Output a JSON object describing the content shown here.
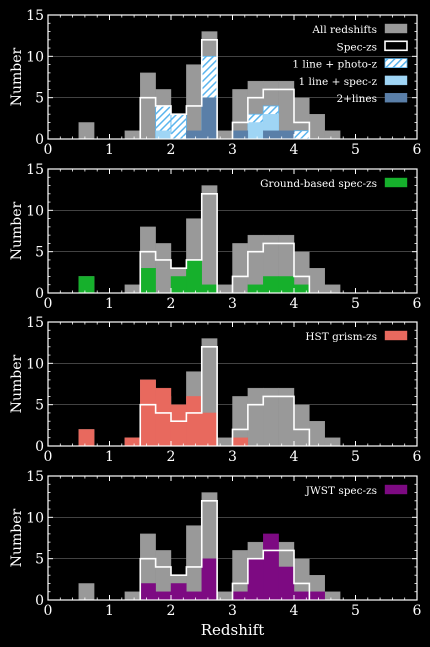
{
  "chart_data": [
    {
      "type": "histogram",
      "ylabel": "Number",
      "xlabel": "",
      "xlim": [
        0,
        6
      ],
      "ylim": [
        0,
        15
      ],
      "xticks": [
        "0",
        "1",
        "2",
        "3",
        "4",
        "5",
        "6"
      ],
      "yticks": [
        "0",
        "5",
        "10",
        "15"
      ],
      "bin_width": 0.25,
      "legend": {
        "position": "top-right",
        "entries": [
          {
            "label": "All redshifts",
            "style": "fill",
            "color": "#999999"
          },
          {
            "label": "Spec-zs",
            "style": "outline",
            "color": "#ffffff"
          },
          {
            "label": "1 line + photo-z",
            "style": "hatch",
            "color": "#5bb5ee"
          },
          {
            "label": "1 line + spec-z",
            "style": "fill",
            "color": "#9fd5f5"
          },
          {
            "label": "2+lines",
            "style": "fill",
            "color": "#5a7fa8"
          }
        ]
      },
      "series": [
        {
          "name": "All redshifts",
          "style": "fill",
          "color": "#999999",
          "bins": [
            [
              0.5,
              2
            ],
            [
              1.25,
              1
            ],
            [
              1.5,
              8
            ],
            [
              1.75,
              6
            ],
            [
              2.0,
              3
            ],
            [
              2.25,
              9
            ],
            [
              2.5,
              13
            ],
            [
              2.75,
              1
            ],
            [
              3.0,
              6
            ],
            [
              3.25,
              7
            ],
            [
              3.5,
              7
            ],
            [
              3.75,
              7
            ],
            [
              4.0,
              5
            ],
            [
              4.25,
              3
            ],
            [
              4.5,
              1
            ]
          ]
        },
        {
          "name": "1 line + photo-z",
          "style": "hatch",
          "color": "#5bb5ee",
          "bins": [
            [
              1.75,
              4
            ],
            [
              2.0,
              3
            ],
            [
              2.5,
              10
            ],
            [
              3.25,
              3
            ],
            [
              3.5,
              4
            ],
            [
              4.0,
              1
            ]
          ]
        },
        {
          "name": "1 line + spec-z",
          "style": "fill",
          "color": "#9fd5f5",
          "bins": [
            [
              1.75,
              1
            ],
            [
              2.5,
              5
            ],
            [
              3.25,
              2
            ],
            [
              3.5,
              3
            ]
          ]
        },
        {
          "name": "2+lines",
          "style": "fill",
          "color": "#5a7fa8",
          "bins": [
            [
              2.25,
              1
            ],
            [
              2.5,
              5
            ],
            [
              3.0,
              1
            ],
            [
              3.5,
              1
            ],
            [
              3.75,
              1
            ]
          ]
        },
        {
          "name": "Spec-zs",
          "style": "outline",
          "color": "#ffffff",
          "bins": [
            [
              1.5,
              5
            ],
            [
              1.75,
              4
            ],
            [
              2.0,
              3
            ],
            [
              2.25,
              4
            ],
            [
              2.5,
              12
            ],
            [
              3.0,
              2
            ],
            [
              3.25,
              5
            ],
            [
              3.5,
              6
            ],
            [
              3.75,
              6
            ],
            [
              4.0,
              2
            ]
          ]
        }
      ]
    },
    {
      "type": "histogram",
      "ylabel": "Number",
      "xlabel": "",
      "xlim": [
        0,
        6
      ],
      "ylim": [
        0,
        15
      ],
      "xticks": [
        "0",
        "1",
        "2",
        "3",
        "4",
        "5",
        "6"
      ],
      "yticks": [
        "0",
        "5",
        "10",
        "15"
      ],
      "bin_width": 0.25,
      "legend": {
        "position": "top-right",
        "entries": [
          {
            "label": "Ground-based spec-zs",
            "style": "fill",
            "color": "#16b02c"
          }
        ]
      },
      "series": [
        {
          "name": "All redshifts",
          "style": "fill",
          "color": "#999999",
          "bins": [
            [
              0.5,
              2
            ],
            [
              1.25,
              1
            ],
            [
              1.5,
              8
            ],
            [
              1.75,
              6
            ],
            [
              2.0,
              3
            ],
            [
              2.25,
              9
            ],
            [
              2.5,
              13
            ],
            [
              2.75,
              1
            ],
            [
              3.0,
              6
            ],
            [
              3.25,
              7
            ],
            [
              3.5,
              7
            ],
            [
              3.75,
              7
            ],
            [
              4.0,
              5
            ],
            [
              4.25,
              3
            ],
            [
              4.5,
              1
            ]
          ]
        },
        {
          "name": "Ground-based spec-zs",
          "style": "fill",
          "color": "#16b02c",
          "bins": [
            [
              0.5,
              2
            ],
            [
              1.5,
              3
            ],
            [
              2.0,
              2
            ],
            [
              2.25,
              4
            ],
            [
              2.5,
              1
            ],
            [
              3.25,
              1
            ],
            [
              3.5,
              2
            ],
            [
              3.75,
              2
            ],
            [
              4.0,
              1
            ]
          ]
        },
        {
          "name": "Spec-zs",
          "style": "outline",
          "color": "#ffffff",
          "bins": [
            [
              1.5,
              5
            ],
            [
              1.75,
              4
            ],
            [
              2.0,
              3
            ],
            [
              2.25,
              4
            ],
            [
              2.5,
              12
            ],
            [
              3.0,
              2
            ],
            [
              3.25,
              5
            ],
            [
              3.5,
              6
            ],
            [
              3.75,
              6
            ],
            [
              4.0,
              2
            ]
          ]
        }
      ]
    },
    {
      "type": "histogram",
      "ylabel": "Number",
      "xlabel": "",
      "xlim": [
        0,
        6
      ],
      "ylim": [
        0,
        15
      ],
      "xticks": [
        "0",
        "1",
        "2",
        "3",
        "4",
        "5",
        "6"
      ],
      "yticks": [
        "0",
        "5",
        "10",
        "15"
      ],
      "bin_width": 0.25,
      "legend": {
        "position": "top-right",
        "entries": [
          {
            "label": "HST grism-zs",
            "style": "fill",
            "color": "#e8695e"
          }
        ]
      },
      "series": [
        {
          "name": "All redshifts",
          "style": "fill",
          "color": "#999999",
          "bins": [
            [
              0.5,
              2
            ],
            [
              1.25,
              1
            ],
            [
              1.5,
              8
            ],
            [
              1.75,
              6
            ],
            [
              2.0,
              3
            ],
            [
              2.25,
              9
            ],
            [
              2.5,
              13
            ],
            [
              2.75,
              1
            ],
            [
              3.0,
              6
            ],
            [
              3.25,
              7
            ],
            [
              3.5,
              7
            ],
            [
              3.75,
              7
            ],
            [
              4.0,
              5
            ],
            [
              4.25,
              3
            ],
            [
              4.5,
              1
            ]
          ]
        },
        {
          "name": "HST grism-zs",
          "style": "fill",
          "color": "#e8695e",
          "bins": [
            [
              0.5,
              2
            ],
            [
              1.25,
              1
            ],
            [
              1.5,
              8
            ],
            [
              1.75,
              7
            ],
            [
              2.0,
              5
            ],
            [
              2.25,
              6
            ],
            [
              2.5,
              4
            ],
            [
              3.0,
              1
            ]
          ]
        },
        {
          "name": "Spec-zs",
          "style": "outline",
          "color": "#ffffff",
          "bins": [
            [
              1.5,
              5
            ],
            [
              1.75,
              4
            ],
            [
              2.0,
              3
            ],
            [
              2.25,
              4
            ],
            [
              2.5,
              12
            ],
            [
              3.0,
              2
            ],
            [
              3.25,
              5
            ],
            [
              3.5,
              6
            ],
            [
              3.75,
              6
            ],
            [
              4.0,
              2
            ]
          ]
        }
      ]
    },
    {
      "type": "histogram",
      "ylabel": "Number",
      "xlabel": "Redshift",
      "xlim": [
        0,
        6
      ],
      "ylim": [
        0,
        15
      ],
      "xticks": [
        "0",
        "1",
        "2",
        "3",
        "4",
        "5",
        "6"
      ],
      "yticks": [
        "0",
        "5",
        "10",
        "15"
      ],
      "bin_width": 0.25,
      "legend": {
        "position": "top-right",
        "entries": [
          {
            "label": "JWST spec-zs",
            "style": "fill",
            "color": "#7d0a82"
          }
        ]
      },
      "series": [
        {
          "name": "All redshifts",
          "style": "fill",
          "color": "#999999",
          "bins": [
            [
              0.5,
              2
            ],
            [
              1.25,
              1
            ],
            [
              1.5,
              8
            ],
            [
              1.75,
              6
            ],
            [
              2.0,
              3
            ],
            [
              2.25,
              9
            ],
            [
              2.5,
              13
            ],
            [
              2.75,
              1
            ],
            [
              3.0,
              6
            ],
            [
              3.25,
              7
            ],
            [
              3.5,
              7
            ],
            [
              3.75,
              7
            ],
            [
              4.0,
              5
            ],
            [
              4.25,
              3
            ],
            [
              4.5,
              1
            ]
          ]
        },
        {
          "name": "JWST spec-zs",
          "style": "fill",
          "color": "#7d0a82",
          "bins": [
            [
              1.5,
              2
            ],
            [
              1.75,
              1
            ],
            [
              2.0,
              2
            ],
            [
              2.25,
              1
            ],
            [
              2.5,
              5
            ],
            [
              3.0,
              1
            ],
            [
              3.25,
              5
            ],
            [
              3.5,
              8
            ],
            [
              3.75,
              4
            ],
            [
              4.0,
              1
            ],
            [
              4.25,
              1
            ]
          ]
        },
        {
          "name": "Spec-zs",
          "style": "outline",
          "color": "#ffffff",
          "bins": [
            [
              1.5,
              5
            ],
            [
              1.75,
              4
            ],
            [
              2.0,
              3
            ],
            [
              2.25,
              4
            ],
            [
              2.5,
              12
            ],
            [
              3.0,
              2
            ],
            [
              3.25,
              5
            ],
            [
              3.5,
              6
            ],
            [
              3.75,
              6
            ],
            [
              4.0,
              2
            ]
          ]
        }
      ]
    }
  ]
}
